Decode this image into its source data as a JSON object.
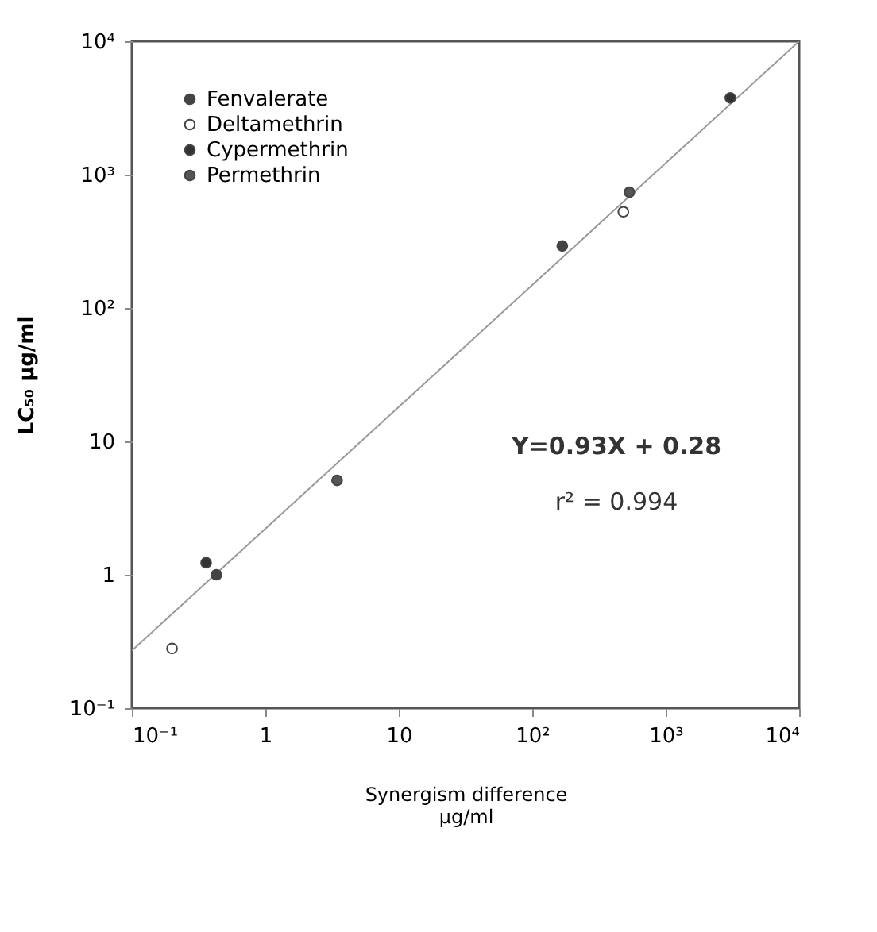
{
  "chart_data": {
    "type": "scatter",
    "xlabel": "Synergism difference\nµg/ml",
    "ylabel": "LC₅₀          µg/ml",
    "log": "xy",
    "marker": "circle",
    "legend": "top left",
    "xlim": [
      0.1,
      10000
    ],
    "ylim": [
      0.1,
      10000
    ],
    "xticks": [
      {
        "value": 0.1,
        "label": "10⁻¹"
      },
      1,
      10,
      {
        "value": 100,
        "label": "10²"
      },
      {
        "value": 1000,
        "label": "10³"
      },
      {
        "value": 10000,
        "label": "10⁴"
      }
    ],
    "yticks": [
      {
        "value": 0.1,
        "label": "10⁻¹"
      },
      1,
      10,
      {
        "value": 100,
        "label": "10²"
      },
      {
        "value": 1000,
        "label": "10³"
      },
      {
        "value": 10000,
        "label": "10⁴"
      }
    ],
    "series": [
      {
        "name": "Fenvalerate",
        "color": "#444444",
        "x": [
          0.43,
          168
        ],
        "values": [
          1.0,
          292
        ]
      },
      {
        "name": "Deltamethrin",
        "color": "#ffffff",
        "x": [
          0.2,
          482
        ],
        "values": [
          0.28,
          527
        ]
      },
      {
        "name": "Cypermethrin",
        "color": "#333333",
        "x": [
          0.36,
          3050
        ],
        "values": [
          1.23,
          3760
        ]
      },
      {
        "name": "Permethrin",
        "color": "#555555",
        "x": [
          3.45,
          535
        ],
        "values": [
          5.1,
          738
        ]
      },
      {
        "type": "line",
        "marker": "none",
        "color": "#999999",
        "x": [
          0.1,
          10000
        ],
        "values": [
          0.27,
          10000
        ]
      }
    ],
    "annotations": [
      "Y=0.93X + 0.28",
      "r² = 0.994"
    ]
  }
}
